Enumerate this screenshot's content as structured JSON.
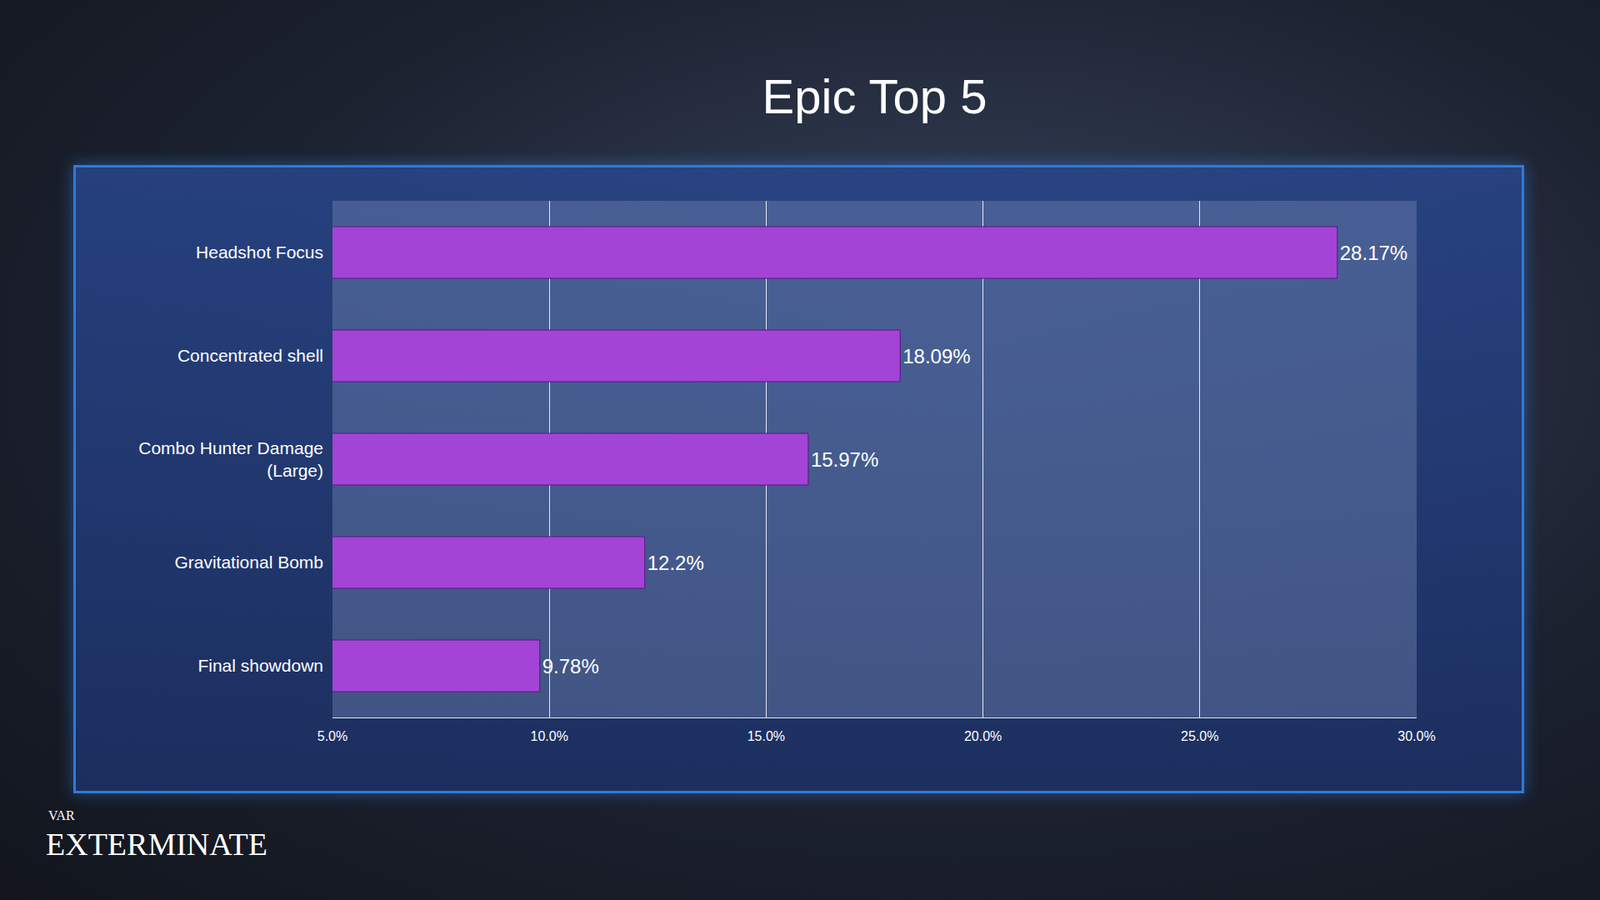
{
  "chart_data": {
    "type": "bar",
    "title": "Epic Top 5",
    "orientation": "horizontal",
    "categories": [
      "Headshot Focus",
      "Concentrated shell",
      "Combo Hunter Damage (Large)",
      "Gravitational Bomb",
      "Final showdown"
    ],
    "values": [
      28.17,
      18.09,
      15.97,
      12.2,
      9.78
    ],
    "value_labels": [
      "28.17%",
      "18.09%",
      "15.97%",
      "12.2%",
      "9.78%"
    ],
    "data_labels": true,
    "color": "#a344d6",
    "xlim": [
      5,
      30
    ],
    "xticks": [
      {
        "value": 5,
        "label": "5.0%"
      },
      {
        "value": 10,
        "label": "10.0%"
      },
      {
        "value": 15,
        "label": "15.0%"
      },
      {
        "value": 20,
        "label": "20.0%"
      },
      {
        "value": 25,
        "label": "25.0%"
      },
      {
        "value": 30,
        "label": "30.0%"
      }
    ],
    "grid": true,
    "annotations": [
      "VAR",
      "EXTERMINATE"
    ]
  }
}
